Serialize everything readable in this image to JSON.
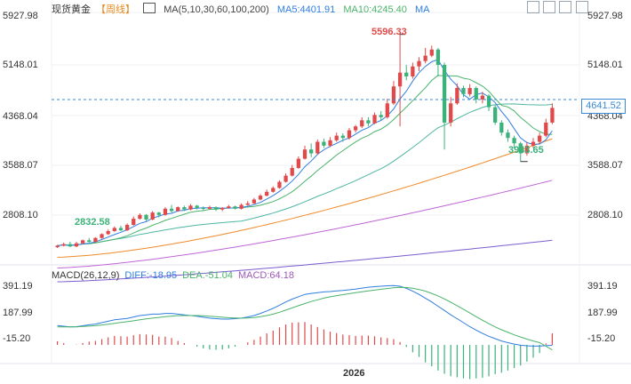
{
  "header": {
    "title": "现货黄金",
    "period": "【周线】",
    "ma_label": "MA(5,10,30,60,100,200)",
    "ma5": "MA5:4401.91",
    "ma10": "MA10:4245.40",
    "ma_tail": "MA"
  },
  "toolbar": {
    "icons": [
      "chart-icon",
      "settings-icon",
      "fullscreen-icon",
      "close-icon"
    ]
  },
  "price_axis": {
    "ticks": [
      "5927.98",
      "5148.01",
      "4368.04",
      "3588.07",
      "2808.10"
    ]
  },
  "current_price": "4641.52",
  "annotations": {
    "high": "5596.33",
    "low_recent": "3943.65",
    "low_left": "2832.58"
  },
  "macd": {
    "label": "MACD(26,12,9)",
    "diff": "DIFF:-18.95",
    "dea": "DEA:-51.04",
    "macd": "MACD:64.18",
    "ticks": [
      "391.19",
      "187.99",
      "-15.20"
    ]
  },
  "x_axis": {
    "label": "2026"
  },
  "colors": {
    "up": "#e04a4a",
    "down": "#3bb27a",
    "ma5": "#2f7ee0",
    "ma10": "#4ab36a",
    "ma30": "#4fb6a3",
    "ma60": "#ef8a2a",
    "ma100": "#c066d6",
    "ma200": "#7d5bd0",
    "price_line": "#3a89d6"
  },
  "chart_data": {
    "type": "line",
    "title": "现货黄金【周线】",
    "candles": [
      [
        2830,
        2850,
        2860,
        2820
      ],
      [
        2850,
        2870,
        2890,
        2840
      ],
      [
        2870,
        2840,
        2900,
        2830
      ],
      [
        2840,
        2880,
        2900,
        2830
      ],
      [
        2880,
        2920,
        2930,
        2870
      ],
      [
        2920,
        2900,
        2950,
        2890
      ],
      [
        2900,
        2950,
        2960,
        2890
      ],
      [
        2950,
        3000,
        3010,
        2940
      ],
      [
        3000,
        3040,
        3060,
        2990
      ],
      [
        3040,
        3080,
        3100,
        3030
      ],
      [
        3080,
        3050,
        3110,
        3040
      ],
      [
        3050,
        3120,
        3140,
        3040
      ],
      [
        3120,
        3200,
        3230,
        3110
      ],
      [
        3200,
        3250,
        3270,
        3190
      ],
      [
        3250,
        3190,
        3260,
        3170
      ],
      [
        3190,
        3280,
        3300,
        3180
      ],
      [
        3280,
        3250,
        3290,
        3220
      ],
      [
        3250,
        3330,
        3350,
        3240
      ],
      [
        3330,
        3300,
        3380,
        3280
      ],
      [
        3300,
        3350,
        3360,
        3290
      ],
      [
        3350,
        3320,
        3370,
        3300
      ],
      [
        3320,
        3370,
        3390,
        3310
      ],
      [
        3370,
        3340,
        3380,
        3320
      ],
      [
        3340,
        3330,
        3360,
        3310
      ],
      [
        3330,
        3350,
        3370,
        3320
      ],
      [
        3350,
        3320,
        3360,
        3300
      ],
      [
        3320,
        3340,
        3350,
        3300
      ],
      [
        3340,
        3360,
        3380,
        3330
      ],
      [
        3360,
        3330,
        3370,
        3320
      ],
      [
        3330,
        3380,
        3400,
        3320
      ],
      [
        3380,
        3400,
        3430,
        3370
      ],
      [
        3400,
        3450,
        3470,
        3390
      ],
      [
        3450,
        3500,
        3520,
        3440
      ],
      [
        3500,
        3550,
        3580,
        3490
      ],
      [
        3550,
        3600,
        3620,
        3540
      ],
      [
        3600,
        3680,
        3700,
        3590
      ],
      [
        3680,
        3760,
        3790,
        3670
      ],
      [
        3760,
        3860,
        3900,
        3750
      ],
      [
        3860,
        3980,
        4010,
        3850
      ],
      [
        3980,
        4100,
        4150,
        3970
      ],
      [
        4100,
        4050,
        4180,
        4000
      ],
      [
        4050,
        4200,
        4230,
        4030
      ],
      [
        4200,
        4150,
        4240,
        4120
      ],
      [
        4150,
        4220,
        4260,
        4130
      ],
      [
        4220,
        4280,
        4320,
        4200
      ],
      [
        4280,
        4250,
        4310,
        4200
      ],
      [
        4250,
        4350,
        4380,
        4230
      ],
      [
        4350,
        4400,
        4420,
        4320
      ],
      [
        4400,
        4480,
        4520,
        4380
      ],
      [
        4480,
        4440,
        4520,
        4400
      ],
      [
        4440,
        4550,
        4580,
        4430
      ],
      [
        4550,
        4520,
        4600,
        4480
      ],
      [
        4520,
        4700,
        4760,
        4500
      ],
      [
        4700,
        4920,
        4990,
        4680
      ],
      [
        4920,
        5100,
        5596.33,
        4400
      ],
      [
        5100,
        5050,
        5200,
        5000
      ],
      [
        5050,
        5180,
        5230,
        5020
      ],
      [
        5180,
        5250,
        5300,
        5120
      ],
      [
        5250,
        5320,
        5420,
        5220
      ],
      [
        5320,
        5400,
        5450,
        5300
      ],
      [
        5400,
        5200,
        5420,
        5050
      ],
      [
        5200,
        4450,
        5230,
        4100
      ],
      [
        4450,
        4700,
        4780,
        4400
      ],
      [
        4700,
        4900,
        4960,
        4680
      ],
      [
        4900,
        4820,
        4930,
        4780
      ],
      [
        4820,
        4900,
        4950,
        4790
      ],
      [
        4900,
        4750,
        4920,
        4700
      ],
      [
        4750,
        4800,
        4850,
        4700
      ],
      [
        4800,
        4650,
        4820,
        4600
      ],
      [
        4650,
        4450,
        4680,
        4420
      ],
      [
        4450,
        4320,
        4480,
        4280
      ],
      [
        4320,
        4250,
        4360,
        4200
      ],
      [
        4250,
        4180,
        4280,
        4120
      ],
      [
        4180,
        4050,
        4200,
        3943.65
      ],
      [
        4050,
        4150,
        4200,
        4020
      ],
      [
        4150,
        4200,
        4250,
        4120
      ],
      [
        4200,
        4280,
        4320,
        4180
      ],
      [
        4280,
        4450,
        4500,
        4260
      ],
      [
        4450,
        4641.52,
        4700,
        4430
      ]
    ],
    "ylim": [
      2808.1,
      5927.98
    ],
    "macd_diff": [
      120,
      115,
      110,
      112,
      118,
      125,
      130,
      140,
      150,
      160,
      165,
      170,
      180,
      190,
      195,
      200,
      200,
      205,
      205,
      200,
      195,
      190,
      185,
      178,
      172,
      168,
      165,
      165,
      168,
      172,
      180,
      190,
      205,
      222,
      240,
      262,
      285,
      305,
      322,
      338,
      345,
      350,
      355,
      358,
      362,
      365,
      370,
      375,
      382,
      388,
      392,
      395,
      398,
      400,
      395,
      380,
      360,
      338,
      312,
      285,
      255,
      225,
      195,
      168,
      140,
      112,
      88,
      65,
      45,
      28,
      12,
      0,
      -10,
      -18,
      -22,
      -24,
      -23,
      -21,
      -18.95
    ],
    "macd_dea": [
      110,
      110,
      110,
      111,
      113,
      116,
      119,
      124,
      129,
      135,
      141,
      147,
      153,
      160,
      166,
      172,
      177,
      182,
      186,
      189,
      190,
      190,
      190,
      188,
      185,
      182,
      178,
      175,
      173,
      172,
      173,
      176,
      182,
      190,
      200,
      213,
      228,
      243,
      259,
      274,
      288,
      300,
      312,
      321,
      329,
      336,
      343,
      350,
      356,
      362,
      368,
      374,
      379,
      384,
      387,
      386,
      381,
      372,
      361,
      345,
      327,
      306,
      283,
      259,
      234,
      208,
      182,
      157,
      133,
      110,
      90,
      72,
      55,
      40,
      25,
      12,
      0,
      -25,
      -51.04
    ]
  }
}
